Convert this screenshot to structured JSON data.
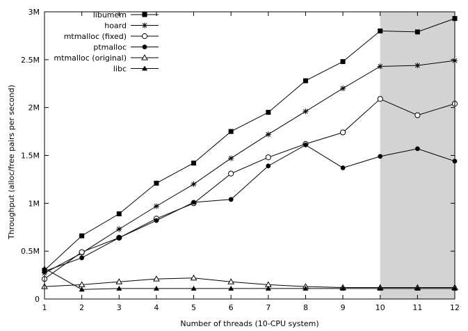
{
  "chart_data": {
    "type": "line",
    "title": "",
    "xlabel": "Number of threads  (10-CPU system)",
    "ylabel": "Throughput  (alloc/free pairs per second)",
    "x": [
      1,
      2,
      3,
      4,
      5,
      6,
      7,
      8,
      9,
      10,
      11,
      12
    ],
    "xlim": [
      1,
      12
    ],
    "ylim": [
      0,
      3000000
    ],
    "x_ticks": [
      {
        "v": 1,
        "label": "1"
      },
      {
        "v": 2,
        "label": "2"
      },
      {
        "v": 3,
        "label": "3"
      },
      {
        "v": 4,
        "label": "4"
      },
      {
        "v": 5,
        "label": "5"
      },
      {
        "v": 6,
        "label": "6"
      },
      {
        "v": 7,
        "label": "7"
      },
      {
        "v": 8,
        "label": "8"
      },
      {
        "v": 9,
        "label": "9"
      },
      {
        "v": 10,
        "label": "10"
      },
      {
        "v": 11,
        "label": "11"
      },
      {
        "v": 12,
        "label": "12"
      }
    ],
    "y_ticks": [
      {
        "v": 0,
        "label": "0"
      },
      {
        "v": 500000,
        "label": "0.5M"
      },
      {
        "v": 1000000,
        "label": "1M"
      },
      {
        "v": 1500000,
        "label": "1.5M"
      },
      {
        "v": 2000000,
        "label": "2M"
      },
      {
        "v": 2500000,
        "label": "2.5M"
      },
      {
        "v": 3000000,
        "label": "3M"
      }
    ],
    "shaded_region": {
      "x_from": 10,
      "x_to": 12,
      "color": "#d3d3d3"
    },
    "legend_position": "top-left",
    "grid": false,
    "series": [
      {
        "name": "libumem",
        "marker": "filled-square",
        "values": [
          300000,
          660000,
          890000,
          1210000,
          1420000,
          1750000,
          1950000,
          2280000,
          2480000,
          2800000,
          2790000,
          2930000
        ]
      },
      {
        "name": "hoard",
        "marker": "asterisk",
        "values": [
          270000,
          480000,
          730000,
          970000,
          1200000,
          1470000,
          1720000,
          1960000,
          2200000,
          2430000,
          2440000,
          2490000
        ]
      },
      {
        "name": "mtmalloc (fixed)",
        "marker": "open-circle",
        "values": [
          210000,
          490000,
          640000,
          840000,
          1000000,
          1310000,
          1480000,
          1620000,
          1740000,
          2090000,
          1920000,
          2040000
        ]
      },
      {
        "name": "ptmalloc",
        "marker": "filled-circle",
        "values": [
          290000,
          430000,
          640000,
          820000,
          1010000,
          1040000,
          1390000,
          1610000,
          1370000,
          1490000,
          1570000,
          1440000
        ]
      },
      {
        "name": "mtmalloc (original)",
        "marker": "open-triangle",
        "values": [
          130000,
          150000,
          180000,
          210000,
          220000,
          180000,
          150000,
          130000,
          120000,
          120000,
          120000,
          120000
        ]
      },
      {
        "name": "libc",
        "marker": "filled-triangle",
        "values": [
          320000,
          100000,
          110000,
          110000,
          110000,
          110000,
          110000,
          110000,
          110000,
          110000,
          110000,
          110000
        ]
      }
    ]
  }
}
